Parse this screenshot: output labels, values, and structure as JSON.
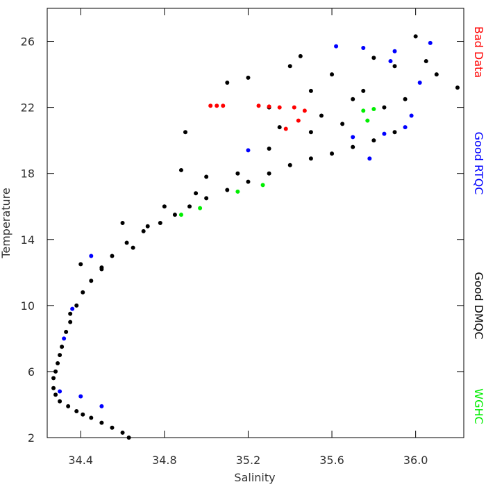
{
  "chart_data": {
    "type": "scatter",
    "xlabel": "Salinity",
    "ylabel": "Temperature",
    "xlim": [
      34.24,
      36.23
    ],
    "ylim": [
      2,
      28
    ],
    "xticks": [
      34.4,
      34.8,
      35.2,
      35.6,
      {
        "value": 36.0,
        "label": "36.0"
      }
    ],
    "yticks": [
      2,
      6,
      10,
      14,
      18,
      22,
      26
    ],
    "series": [
      {
        "name": "Bad Data",
        "color": "#ff0000",
        "x": [
          35.02,
          35.05,
          35.08,
          35.25,
          35.3,
          35.35,
          35.42,
          35.47,
          35.38,
          35.44
        ],
        "y": [
          22.1,
          22.1,
          22.1,
          22.1,
          22.05,
          22.0,
          22.0,
          21.8,
          20.7,
          21.2
        ]
      },
      {
        "name": "Good RTQC",
        "color": "#0000ff",
        "x": [
          35.62,
          35.75,
          35.9,
          36.07,
          35.85,
          35.95,
          35.78,
          34.32,
          34.36,
          34.45,
          34.5,
          34.4,
          35.98,
          36.02,
          35.2,
          34.3,
          35.88,
          35.7
        ],
        "y": [
          25.7,
          25.6,
          25.4,
          25.9,
          20.4,
          20.8,
          18.9,
          8.0,
          9.8,
          13.0,
          3.9,
          4.5,
          21.5,
          23.5,
          19.4,
          4.8,
          24.8,
          20.2
        ]
      },
      {
        "name": "Good DMQC",
        "color": "#000000",
        "x": [
          34.63,
          34.6,
          34.55,
          34.5,
          34.45,
          34.41,
          34.38,
          34.34,
          34.3,
          34.28,
          34.27,
          34.27,
          34.28,
          34.29,
          34.3,
          34.31,
          34.33,
          34.35,
          34.38,
          34.41,
          34.45,
          34.5,
          34.55,
          34.62,
          34.7,
          34.78,
          34.85,
          34.92,
          35.0,
          35.1,
          35.2,
          35.3,
          35.4,
          35.5,
          35.6,
          35.7,
          35.8,
          35.9,
          35.6,
          35.8,
          35.9,
          36.0,
          36.1,
          36.2,
          35.5,
          35.4,
          35.3,
          35.7,
          35.85,
          34.9,
          34.8,
          34.6,
          34.4,
          35.45,
          35.1,
          35.2,
          34.88,
          35.5,
          35.3,
          35.0,
          34.65,
          34.5,
          34.35,
          35.65,
          35.75,
          35.95,
          36.05,
          35.55,
          35.35,
          34.95,
          35.15,
          34.72
        ],
        "y": [
          2.0,
          2.3,
          2.6,
          2.9,
          3.2,
          3.4,
          3.6,
          3.9,
          4.2,
          4.6,
          5.0,
          5.6,
          6.0,
          6.5,
          7.0,
          7.5,
          8.4,
          9.0,
          10.0,
          10.8,
          11.5,
          12.3,
          13.0,
          13.8,
          14.5,
          15.0,
          15.5,
          16.0,
          16.5,
          17.0,
          17.5,
          18.0,
          18.5,
          18.9,
          19.2,
          19.6,
          20.0,
          20.5,
          24.0,
          25.0,
          24.5,
          26.3,
          24.0,
          23.2,
          23.0,
          24.5,
          22.0,
          22.5,
          22.0,
          20.5,
          16.0,
          15.0,
          12.5,
          25.1,
          23.5,
          23.8,
          18.2,
          20.5,
          19.5,
          17.8,
          13.5,
          12.2,
          9.5,
          21.0,
          23.0,
          22.5,
          24.8,
          21.5,
          20.8,
          16.8,
          18.0,
          14.8
        ]
      },
      {
        "name": "WGHC",
        "color": "#00ee00",
        "x": [
          35.75,
          35.77,
          35.15,
          35.27,
          34.97,
          34.88,
          35.8
        ],
        "y": [
          21.8,
          21.2,
          16.9,
          17.3,
          15.9,
          15.5,
          21.9
        ]
      }
    ]
  }
}
